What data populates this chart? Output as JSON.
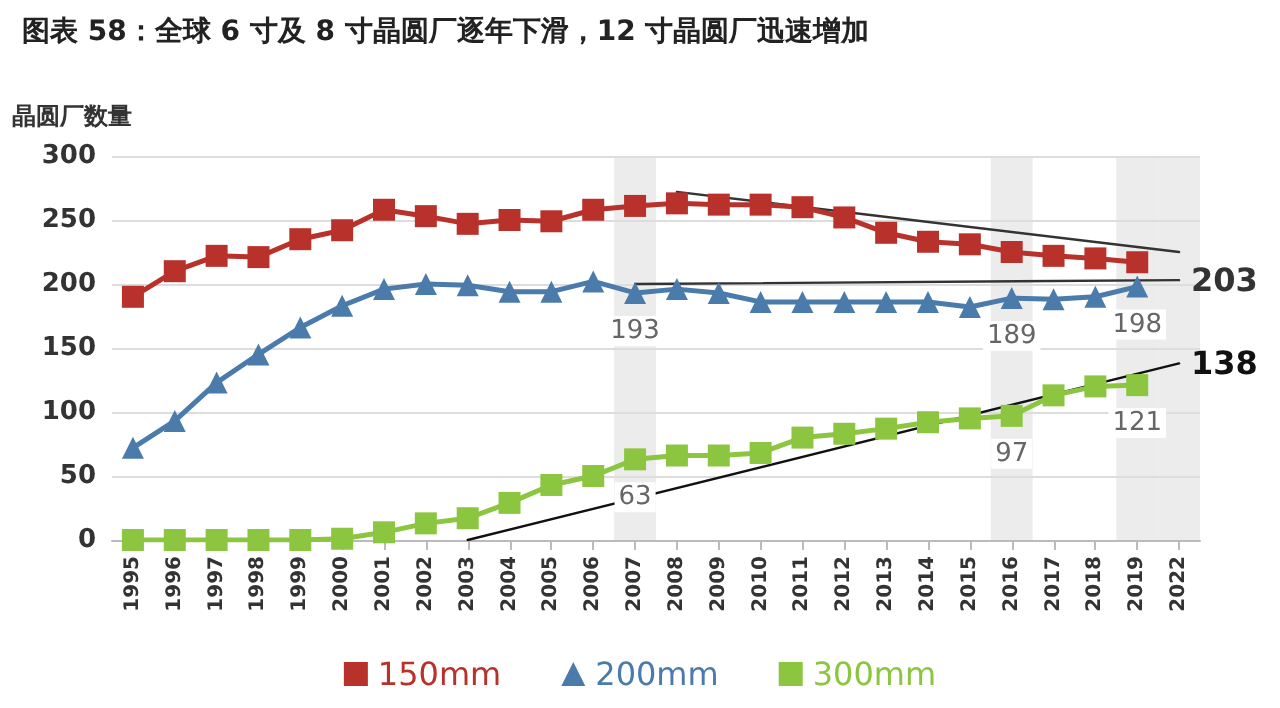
{
  "chart_data": {
    "type": "line",
    "title": "图表 58：全球 6 寸及 8 寸晶圆厂逐年下滑，12 寸晶圆厂迅速增加",
    "ylabel": "晶圆厂数量",
    "categories": [
      "1995",
      "1996",
      "1997",
      "1998",
      "1999",
      "2000",
      "2001",
      "2002",
      "2003",
      "2004",
      "2005",
      "2006",
      "2007",
      "2008",
      "2009",
      "2010",
      "2011",
      "2012",
      "2013",
      "2014",
      "2015",
      "2016",
      "2017",
      "2018",
      "2019",
      "2022"
    ],
    "series": [
      {
        "name": "150mm",
        "color": "#b8312b",
        "marker": "square",
        "values": [
          190,
          210,
          222,
          221,
          235,
          242,
          258,
          253,
          247,
          250,
          249,
          258,
          261,
          263,
          262,
          262,
          260,
          252,
          240,
          233,
          231,
          225,
          222,
          220,
          217,
          null
        ]
      },
      {
        "name": "200mm",
        "color": "#4a7bab",
        "marker": "triangle",
        "values": [
          72,
          93,
          123,
          145,
          166,
          183,
          196,
          200,
          199,
          194,
          194,
          202,
          193,
          196,
          193,
          186,
          186,
          186,
          186,
          186,
          182,
          189,
          188,
          190,
          198,
          null
        ],
        "value_labels": [
          null,
          null,
          null,
          null,
          null,
          null,
          null,
          null,
          null,
          null,
          null,
          null,
          "193",
          null,
          null,
          null,
          null,
          null,
          null,
          null,
          null,
          "189",
          null,
          null,
          "198",
          null
        ]
      },
      {
        "name": "300mm",
        "color": "#8cc540",
        "marker": "square",
        "values": [
          0,
          0,
          0,
          0,
          0,
          1,
          6,
          13,
          17,
          29,
          43,
          50,
          63,
          66,
          66,
          68,
          80,
          83,
          87,
          92,
          95,
          97,
          113,
          120,
          121,
          null
        ],
        "value_labels": [
          null,
          null,
          null,
          null,
          null,
          null,
          null,
          null,
          null,
          null,
          null,
          null,
          "63",
          null,
          null,
          null,
          null,
          null,
          null,
          null,
          null,
          "97",
          null,
          null,
          "121",
          null
        ]
      },
      {
        "type": "line",
        "color": "#333333",
        "marker": "none",
        "values": [
          null,
          null,
          null,
          null,
          null,
          null,
          null,
          null,
          null,
          null,
          null,
          null,
          null,
          272,
          null,
          null,
          null,
          null,
          null,
          null,
          null,
          null,
          null,
          null,
          null,
          225
        ]
      },
      {
        "type": "line",
        "color": "#333333",
        "marker": "none",
        "values": [
          null,
          null,
          null,
          null,
          null,
          null,
          null,
          null,
          null,
          null,
          null,
          null,
          200,
          null,
          null,
          null,
          null,
          null,
          null,
          null,
          null,
          null,
          null,
          null,
          null,
          203
        ],
        "value_labels": [
          null,
          null,
          null,
          null,
          null,
          null,
          null,
          null,
          null,
          null,
          null,
          null,
          null,
          null,
          null,
          null,
          null,
          null,
          null,
          null,
          null,
          null,
          null,
          null,
          null,
          "203"
        ]
      },
      {
        "type": "line",
        "color": "#111111",
        "marker": "none",
        "values": [
          null,
          null,
          null,
          null,
          null,
          null,
          null,
          null,
          0,
          null,
          null,
          null,
          null,
          null,
          null,
          null,
          null,
          null,
          null,
          null,
          null,
          null,
          null,
          null,
          null,
          138
        ],
        "value_labels": [
          null,
          null,
          null,
          null,
          null,
          null,
          null,
          null,
          null,
          null,
          null,
          null,
          null,
          null,
          null,
          null,
          null,
          null,
          null,
          null,
          null,
          null,
          null,
          null,
          null,
          "138"
        ]
      }
    ],
    "bands": [
      {
        "axis": "x",
        "from": "2007",
        "to": "2007",
        "color": "#ececec"
      },
      {
        "axis": "x",
        "from": "2016",
        "to": "2016",
        "color": "#ececec"
      },
      {
        "axis": "x",
        "from": "2019",
        "to": "2019",
        "color": "#ececec"
      },
      {
        "axis": "x",
        "from": "2022",
        "to": "2022",
        "color": "#ececec"
      }
    ],
    "ylim": [
      0,
      300
    ],
    "yticks": [
      0,
      50,
      100,
      150,
      200,
      250,
      300
    ],
    "grid": "y",
    "legend": "bottom",
    "line_style": "solid"
  }
}
